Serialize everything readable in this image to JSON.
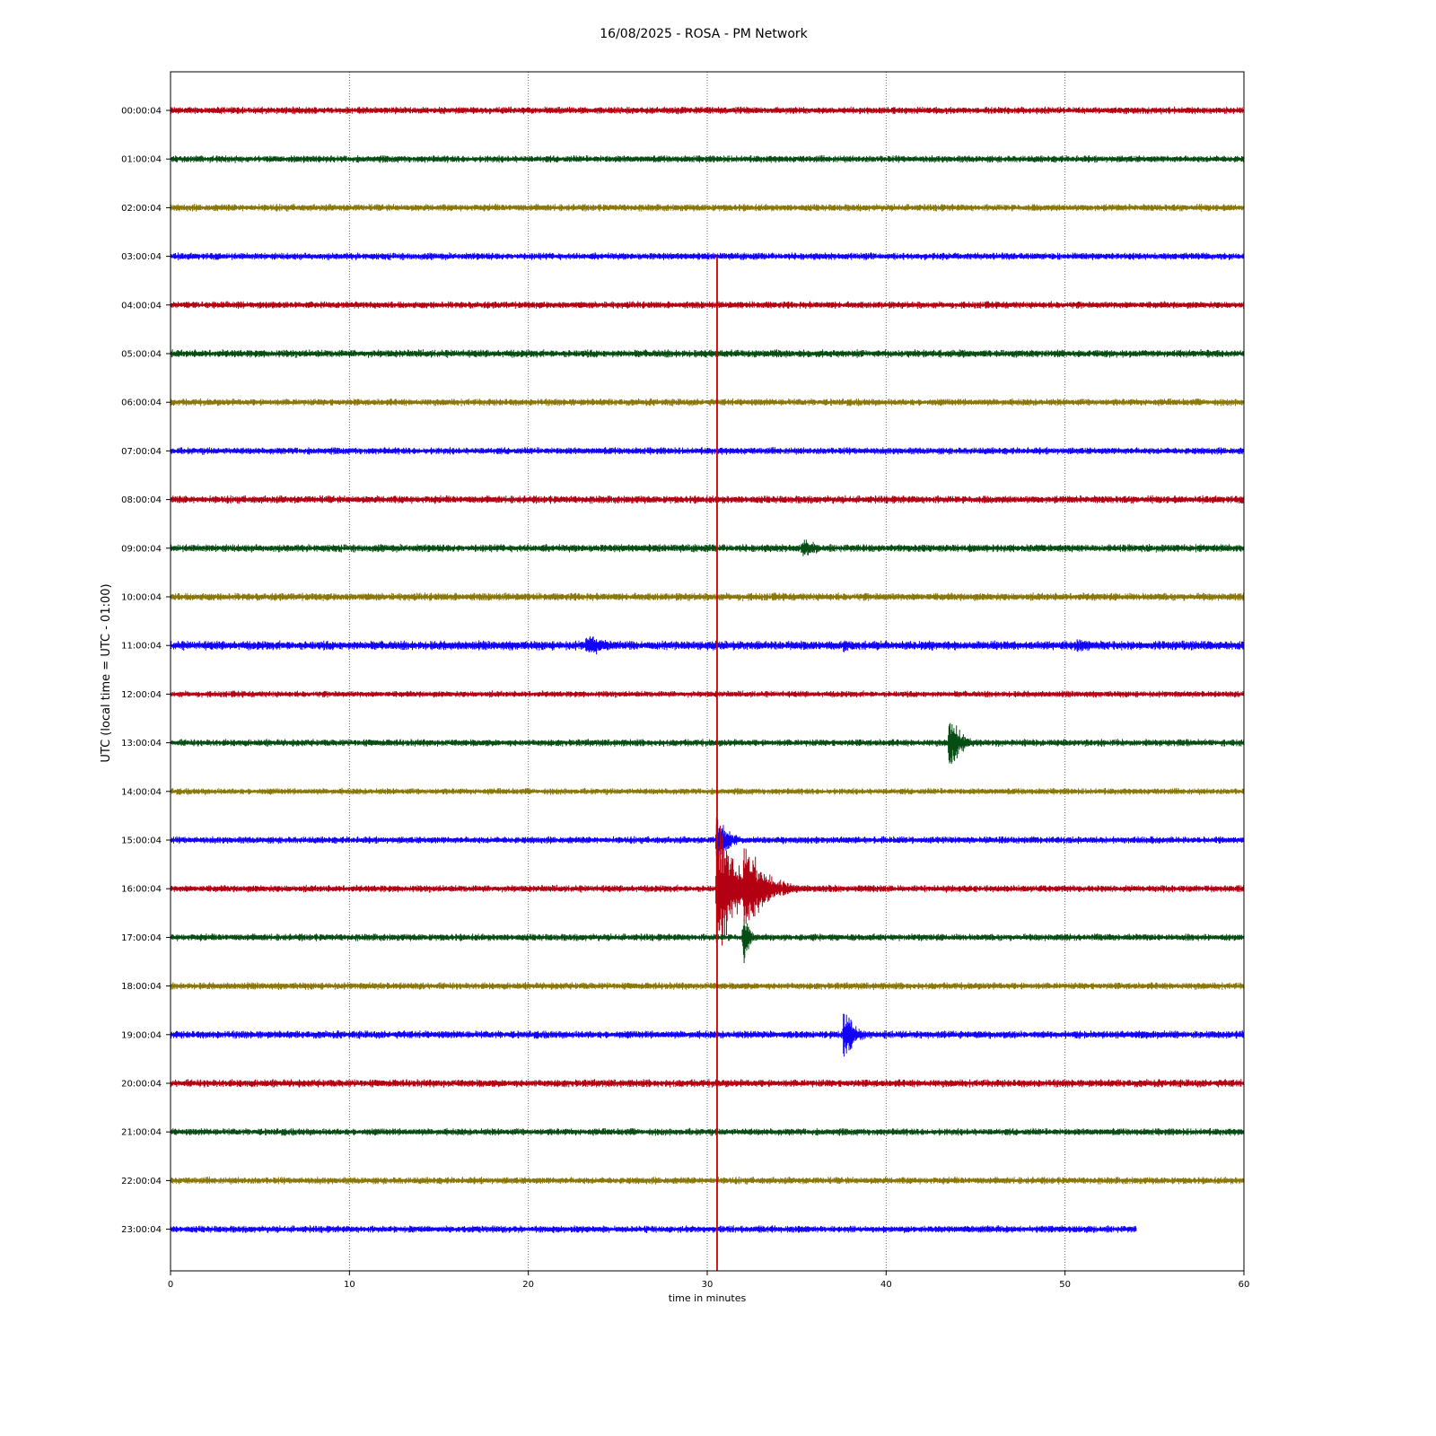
{
  "chart_data": {
    "type": "line",
    "title": "16/08/2025 - ROSA - PM Network",
    "xlabel": "time in minutes",
    "ylabel": "UTC (local time = UTC - 01:00)",
    "xlim": [
      0,
      60
    ],
    "xticks": [
      0,
      10,
      20,
      30,
      40,
      50,
      60
    ],
    "grid": "vertical dotted at x ticks",
    "line_colors": [
      "#b30012",
      "#064d14",
      "#8a7709",
      "#1200ff"
    ],
    "rows": [
      {
        "label": "00:00:04",
        "end": 60,
        "noise": 1.0,
        "events": []
      },
      {
        "label": "01:00:04",
        "end": 60,
        "noise": 1.0,
        "events": []
      },
      {
        "label": "02:00:04",
        "end": 60,
        "noise": 1.0,
        "events": []
      },
      {
        "label": "03:00:04",
        "end": 60,
        "noise": 1.0,
        "events": []
      },
      {
        "label": "04:00:04",
        "end": 60,
        "noise": 1.0,
        "events": []
      },
      {
        "label": "05:00:04",
        "end": 60,
        "noise": 1.1,
        "events": [
          {
            "t": 29.5,
            "amp": 4,
            "dur": 1.5
          }
        ]
      },
      {
        "label": "06:00:04",
        "end": 60,
        "noise": 1.0,
        "events": []
      },
      {
        "label": "07:00:04",
        "end": 60,
        "noise": 1.0,
        "events": []
      },
      {
        "label": "08:00:04",
        "end": 60,
        "noise": 1.1,
        "events": []
      },
      {
        "label": "09:00:04",
        "end": 60,
        "noise": 1.1,
        "events": [
          {
            "t": 35.3,
            "amp": 16,
            "dur": 0.8
          },
          {
            "t": 57.3,
            "amp": 5,
            "dur": 1.0
          }
        ]
      },
      {
        "label": "10:00:04",
        "end": 60,
        "noise": 1.1,
        "events": [
          {
            "t": 51.5,
            "amp": 4,
            "dur": 1.5
          }
        ]
      },
      {
        "label": "11:00:04",
        "end": 60,
        "noise": 1.3,
        "events": [
          {
            "t": 23.2,
            "amp": 16,
            "dur": 1.4
          },
          {
            "t": 37.6,
            "amp": 12,
            "dur": 0.5
          },
          {
            "t": 42.0,
            "amp": 6,
            "dur": 0.8
          },
          {
            "t": 50.5,
            "amp": 10,
            "dur": 1.8
          },
          {
            "t": 57.3,
            "amp": 6,
            "dur": 1.0
          }
        ]
      },
      {
        "label": "12:00:04",
        "end": 60,
        "noise": 0.9,
        "events": []
      },
      {
        "label": "13:00:04",
        "end": 60,
        "noise": 1.0,
        "events": [
          {
            "t": 43.5,
            "amp": 44,
            "dur": 0.6
          }
        ]
      },
      {
        "label": "14:00:04",
        "end": 60,
        "noise": 0.9,
        "events": []
      },
      {
        "label": "15:00:04",
        "end": 60,
        "noise": 1.0,
        "events": [
          {
            "t": 30.5,
            "amp": 40,
            "dur": 0.6
          }
        ]
      },
      {
        "label": "16:00:04",
        "end": 60,
        "noise": 1.0,
        "events": [
          {
            "t": 30.5,
            "amp": 95,
            "dur": 1.2
          },
          {
            "t": 32.0,
            "amp": 65,
            "dur": 1.2
          },
          {
            "t": 32.8,
            "amp": 10,
            "dur": 1.3
          }
        ]
      },
      {
        "label": "17:00:04",
        "end": 60,
        "noise": 1.0,
        "events": [
          {
            "t": 32.0,
            "amp": 40,
            "dur": 0.3
          }
        ]
      },
      {
        "label": "18:00:04",
        "end": 60,
        "noise": 1.0,
        "events": []
      },
      {
        "label": "19:00:04",
        "end": 60,
        "noise": 1.1,
        "events": [
          {
            "t": 32.7,
            "amp": 6,
            "dur": 0.4
          },
          {
            "t": 37.6,
            "amp": 38,
            "dur": 0.6
          }
        ]
      },
      {
        "label": "20:00:04",
        "end": 60,
        "noise": 1.1,
        "events": []
      },
      {
        "label": "21:00:04",
        "end": 60,
        "noise": 1.0,
        "events": []
      },
      {
        "label": "22:00:04",
        "end": 60,
        "noise": 1.0,
        "events": []
      },
      {
        "label": "23:00:04",
        "end": 54,
        "noise": 1.0,
        "events": [
          {
            "t": 12.0,
            "amp": 4,
            "dur": 1.0
          }
        ]
      }
    ],
    "marker": {
      "x": 30.55,
      "from_row": "03:00:04",
      "color": "#c80000"
    }
  }
}
